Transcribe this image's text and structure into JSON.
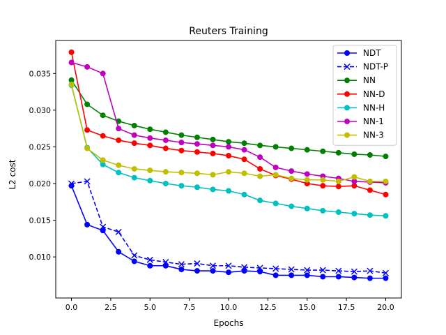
{
  "chart_data": {
    "type": "line",
    "title": "Reuters Training",
    "xlabel": "Epochs",
    "ylabel": "L2 cost",
    "xlim": [
      -1,
      21
    ],
    "ylim": [
      0.0044,
      0.0395
    ],
    "xticks": [
      0.0,
      2.5,
      5.0,
      7.5,
      10.0,
      12.5,
      15.0,
      17.5,
      20.0
    ],
    "xtick_labels": [
      "0.0",
      "2.5",
      "5.0",
      "7.5",
      "10.0",
      "12.5",
      "15.0",
      "17.5",
      "20.0"
    ],
    "yticks": [
      0.01,
      0.015,
      0.02,
      0.025,
      0.03,
      0.035
    ],
    "ytick_labels": [
      "0.010",
      "0.015",
      "0.020",
      "0.025",
      "0.030",
      "0.035"
    ],
    "grid": false,
    "legend_position": "top-right",
    "x": [
      0,
      1,
      2,
      3,
      4,
      5,
      6,
      7,
      8,
      9,
      10,
      11,
      12,
      13,
      14,
      15,
      16,
      17,
      18,
      19,
      20
    ],
    "series": [
      {
        "name": "NDT",
        "color": "#0000ff",
        "marker": "circle",
        "dashed": false,
        "values": [
          0.0197,
          0.0144,
          0.0136,
          0.0107,
          0.0094,
          0.0088,
          0.0088,
          0.0083,
          0.0081,
          0.0081,
          0.0079,
          0.0081,
          0.008,
          0.0075,
          0.0075,
          0.0075,
          0.0073,
          0.0073,
          0.0072,
          0.0071,
          0.0071
        ]
      },
      {
        "name": "NDT-P",
        "color": "#0000ff",
        "marker": "x",
        "dashed": true,
        "values": [
          0.02,
          0.0203,
          0.0141,
          0.0134,
          0.0102,
          0.0096,
          0.0093,
          0.009,
          0.0091,
          0.0088,
          0.0088,
          0.0086,
          0.0085,
          0.0084,
          0.0083,
          0.0082,
          0.0082,
          0.0081,
          0.008,
          0.0081,
          0.0078
        ]
      },
      {
        "name": "NN",
        "color": "#008000",
        "marker": "circle",
        "dashed": false,
        "values": [
          0.0341,
          0.0308,
          0.0293,
          0.0285,
          0.0279,
          0.0274,
          0.027,
          0.0266,
          0.0263,
          0.026,
          0.0257,
          0.0255,
          0.0252,
          0.025,
          0.0248,
          0.0246,
          0.0244,
          0.0242,
          0.024,
          0.0239,
          0.0237
        ]
      },
      {
        "name": "NN-D",
        "color": "#ff0000",
        "marker": "circle",
        "dashed": false,
        "values": [
          0.0379,
          0.0273,
          0.0265,
          0.0259,
          0.0255,
          0.0252,
          0.0248,
          0.0245,
          0.0243,
          0.0241,
          0.0238,
          0.0233,
          0.022,
          0.0211,
          0.0206,
          0.02,
          0.0197,
          0.0196,
          0.0197,
          0.0191,
          0.0185
        ]
      },
      {
        "name": "NN-H",
        "color": "#00bfbf",
        "marker": "circle",
        "dashed": false,
        "values": [
          0.0334,
          0.0249,
          0.0226,
          0.0215,
          0.0208,
          0.0204,
          0.02,
          0.0197,
          0.0195,
          0.0192,
          0.019,
          0.0185,
          0.0177,
          0.0173,
          0.0169,
          0.0166,
          0.0163,
          0.0161,
          0.0159,
          0.0157,
          0.0156
        ]
      },
      {
        "name": "NN-1",
        "color": "#bf00bf",
        "marker": "circle",
        "dashed": false,
        "values": [
          0.0365,
          0.0359,
          0.035,
          0.0275,
          0.0266,
          0.0262,
          0.0259,
          0.0256,
          0.0254,
          0.0252,
          0.025,
          0.0246,
          0.0236,
          0.0222,
          0.0217,
          0.0213,
          0.021,
          0.0207,
          0.0203,
          0.0202,
          0.0201
        ]
      },
      {
        "name": "NN-3",
        "color": "#bfbf00",
        "marker": "circle",
        "dashed": false,
        "values": [
          0.0335,
          0.0248,
          0.0232,
          0.0225,
          0.022,
          0.0218,
          0.0216,
          0.0215,
          0.0214,
          0.0212,
          0.0216,
          0.0214,
          0.021,
          0.0212,
          0.0207,
          0.0205,
          0.0205,
          0.0203,
          0.0209,
          0.0203,
          0.0203
        ]
      }
    ]
  }
}
